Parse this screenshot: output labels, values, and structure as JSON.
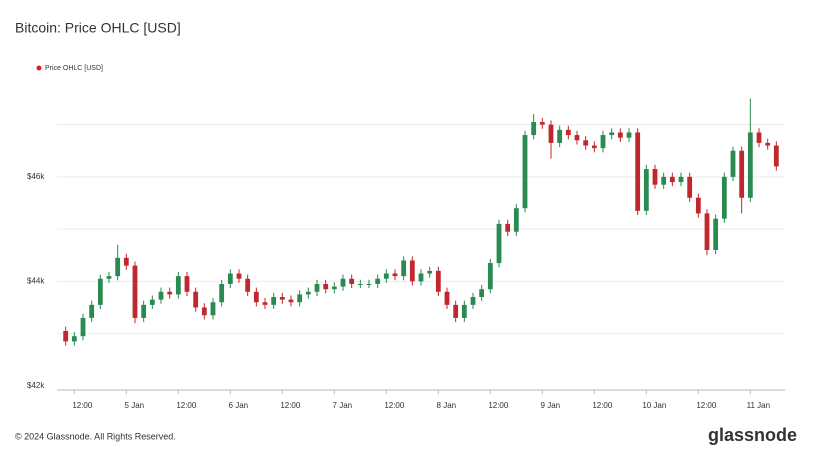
{
  "chart_data": {
    "type": "candlestick",
    "title": "Bitcoin: Price OHLC [USD]",
    "legend_label": "Price OHLC [USD]",
    "legend_color": "#e01f1f",
    "footer": "© 2024 Glassnode. All Rights Reserved.",
    "brand": "glassnode",
    "up_color": "#2a8a52",
    "down_color": "#c0282d",
    "xlim": [
      "4 Jan 08:00",
      "11 Jan 08:00"
    ],
    "xticks": [
      {
        "value": "4 Jan 12:00",
        "label": "12:00"
      },
      {
        "value": "5 Jan 00:00",
        "label": "5 Jan"
      },
      {
        "value": "5 Jan 12:00",
        "label": "12:00"
      },
      {
        "value": "6 Jan 00:00",
        "label": "6 Jan"
      },
      {
        "value": "6 Jan 12:00",
        "label": "12:00"
      },
      {
        "value": "7 Jan 00:00",
        "label": "7 Jan"
      },
      {
        "value": "7 Jan 12:00",
        "label": "12:00"
      },
      {
        "value": "8 Jan 00:00",
        "label": "8 Jan"
      },
      {
        "value": "8 Jan 12:00",
        "label": "12:00"
      },
      {
        "value": "9 Jan 00:00",
        "label": "9 Jan"
      },
      {
        "value": "9 Jan 12:00",
        "label": "12:00"
      },
      {
        "value": "10 Jan 00:00",
        "label": "10 Jan"
      },
      {
        "value": "10 Jan 12:00",
        "label": "12:00"
      },
      {
        "value": "11 Jan 00:00",
        "label": "11 Jan"
      }
    ],
    "ylim": [
      41920,
      47950
    ],
    "yticks": [
      {
        "value": 42000,
        "label": "$42k"
      },
      {
        "value": 44000,
        "label": "$44k"
      },
      {
        "value": 46000,
        "label": "$46k"
      }
    ],
    "ygrid": [
      43000,
      44000,
      45000,
      46000,
      47000
    ],
    "x": [
      "4 Jan 10:00",
      "4 Jan 12:00",
      "4 Jan 14:00",
      "4 Jan 16:00",
      "4 Jan 18:00",
      "4 Jan 20:00",
      "4 Jan 22:00",
      "5 Jan 00:00",
      "5 Jan 02:00",
      "5 Jan 04:00",
      "5 Jan 06:00",
      "5 Jan 08:00",
      "5 Jan 10:00",
      "5 Jan 12:00",
      "5 Jan 14:00",
      "5 Jan 16:00",
      "5 Jan 18:00",
      "5 Jan 20:00",
      "5 Jan 22:00",
      "6 Jan 00:00",
      "6 Jan 02:00",
      "6 Jan 04:00",
      "6 Jan 06:00",
      "6 Jan 08:00",
      "6 Jan 10:00",
      "6 Jan 12:00",
      "6 Jan 14:00",
      "6 Jan 16:00",
      "6 Jan 18:00",
      "6 Jan 20:00",
      "6 Jan 22:00",
      "7 Jan 00:00",
      "7 Jan 02:00",
      "7 Jan 04:00",
      "7 Jan 06:00",
      "7 Jan 08:00",
      "7 Jan 10:00",
      "7 Jan 12:00",
      "7 Jan 14:00",
      "7 Jan 16:00",
      "7 Jan 18:00",
      "7 Jan 20:00",
      "7 Jan 22:00",
      "8 Jan 00:00",
      "8 Jan 02:00",
      "8 Jan 04:00",
      "8 Jan 06:00",
      "8 Jan 08:00",
      "8 Jan 10:00",
      "8 Jan 12:00",
      "8 Jan 14:00",
      "8 Jan 16:00",
      "8 Jan 18:00",
      "8 Jan 20:00",
      "8 Jan 22:00",
      "9 Jan 00:00",
      "9 Jan 02:00",
      "9 Jan 04:00",
      "9 Jan 06:00",
      "9 Jan 08:00",
      "9 Jan 10:00",
      "9 Jan 12:00",
      "9 Jan 14:00",
      "9 Jan 16:00",
      "9 Jan 18:00",
      "9 Jan 20:00",
      "9 Jan 22:00",
      "10 Jan 00:00",
      "10 Jan 02:00",
      "10 Jan 04:00",
      "10 Jan 06:00",
      "10 Jan 08:00",
      "10 Jan 10:00",
      "10 Jan 12:00",
      "10 Jan 14:00",
      "10 Jan 16:00",
      "10 Jan 18:00",
      "10 Jan 20:00",
      "10 Jan 22:00",
      "11 Jan 00:00",
      "11 Jan 02:00",
      "11 Jan 04:00",
      "11 Jan 06:00"
    ],
    "open": [
      43050,
      42850,
      42950,
      43300,
      43550,
      44050,
      44100,
      44450,
      44300,
      43300,
      43550,
      43650,
      43800,
      43750,
      44100,
      43800,
      43500,
      43350,
      43600,
      43950,
      44150,
      44050,
      43800,
      43600,
      43550,
      43700,
      43650,
      43600,
      43750,
      43800,
      43950,
      43850,
      43900,
      44050,
      43950,
      43950,
      43950,
      44050,
      44150,
      44100,
      44400,
      44000,
      44150,
      44200,
      43800,
      43550,
      43300,
      43550,
      43700,
      43850,
      44350,
      45100,
      44950,
      45400,
      46800,
      47050,
      47000,
      46650,
      46900,
      46800,
      46700,
      46600,
      46550,
      46800,
      46850,
      46750,
      46850,
      45350,
      46150,
      45850,
      46000,
      45900,
      46000,
      45600,
      45300,
      44600,
      45200,
      46000,
      46500,
      45600,
      46850,
      46650,
      46600
    ],
    "high": [
      43130,
      43030,
      43380,
      43630,
      44130,
      44180,
      44700,
      44530,
      44380,
      43630,
      43730,
      43880,
      43880,
      44180,
      44180,
      43880,
      43580,
      43680,
      44030,
      44230,
      44230,
      44130,
      43880,
      43680,
      43780,
      43780,
      43730,
      43830,
      43880,
      44030,
      44030,
      43980,
      44130,
      44130,
      44030,
      44030,
      44130,
      44230,
      44230,
      44480,
      44480,
      44230,
      44280,
      44280,
      43880,
      43630,
      43630,
      43780,
      43930,
      44430,
      45180,
      45180,
      45480,
      46880,
      47200,
      47130,
      47080,
      46980,
      46980,
      46880,
      46780,
      46680,
      46880,
      46930,
      46930,
      46930,
      46930,
      46230,
      46230,
      46080,
      46080,
      46080,
      46080,
      45680,
      45380,
      45280,
      46080,
      46580,
      46580,
      47500,
      46930,
      46730,
      46680
    ],
    "low": [
      42770,
      42770,
      42870,
      43220,
      43470,
      43970,
      44020,
      44220,
      43200,
      43220,
      43470,
      43570,
      43670,
      43670,
      43720,
      43420,
      43270,
      43270,
      43520,
      43870,
      43970,
      43720,
      43520,
      43470,
      43470,
      43570,
      43520,
      43520,
      43670,
      43720,
      43770,
      43770,
      43820,
      43870,
      43870,
      43870,
      43870,
      43970,
      44020,
      44020,
      43920,
      43920,
      44070,
      43720,
      43470,
      43220,
      43220,
      43470,
      43620,
      43770,
      44270,
      44870,
      44870,
      45320,
      46720,
      46920,
      46350,
      46570,
      46720,
      46620,
      46520,
      46470,
      46470,
      46720,
      46670,
      46670,
      45270,
      45270,
      45770,
      45770,
      45820,
      45820,
      45520,
      45220,
      44500,
      44520,
      45120,
      45920,
      45300,
      45520,
      46570,
      46520,
      46120
    ],
    "close": [
      42850,
      42950,
      43300,
      43550,
      44050,
      44100,
      44450,
      44300,
      43300,
      43550,
      43650,
      43800,
      43750,
      44100,
      43800,
      43500,
      43350,
      43600,
      43950,
      44150,
      44050,
      43800,
      43600,
      43550,
      43700,
      43650,
      43600,
      43750,
      43800,
      43950,
      43850,
      43900,
      44050,
      43950,
      43950,
      43950,
      44050,
      44150,
      44100,
      44400,
      44000,
      44150,
      44200,
      43800,
      43550,
      43300,
      43550,
      43700,
      43850,
      44350,
      45100,
      44950,
      45400,
      46800,
      47050,
      47000,
      46650,
      46900,
      46800,
      46700,
      46600,
      46550,
      46800,
      46850,
      46750,
      46850,
      45350,
      46150,
      45850,
      46000,
      45900,
      46000,
      45600,
      45300,
      44600,
      45200,
      46000,
      46500,
      45600,
      46850,
      46650,
      46600,
      46200
    ]
  }
}
